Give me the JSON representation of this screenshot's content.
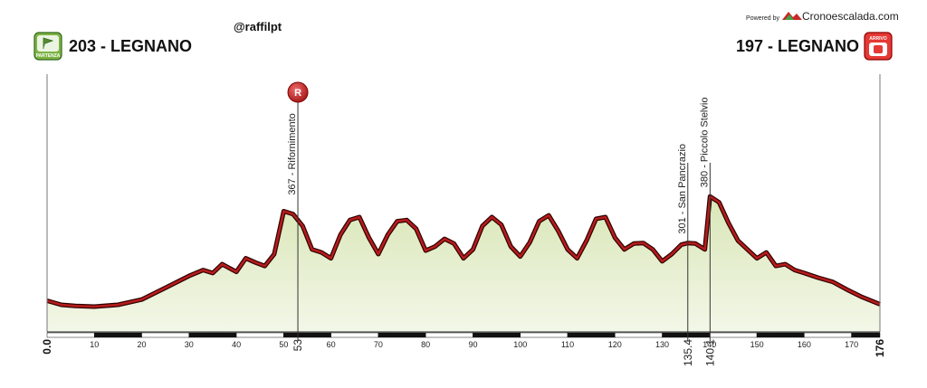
{
  "header": {
    "start": {
      "label": "203 - LEGNANO",
      "badge": "PARTENZA",
      "badge_color": "#7cb342"
    },
    "finish": {
      "label": "197 - LEGNANO",
      "badge": "ARRIVO",
      "badge_color": "#d32f2f"
    },
    "credit": "@raffilpt",
    "powered_by": "Powered by",
    "brand": "Cronoescalada.com"
  },
  "colors": {
    "profile_fill": "#e4edcb",
    "profile_line": "#b71c1c",
    "marker": "#c62828"
  },
  "chart_data": {
    "type": "area",
    "title": "",
    "xlabel": "",
    "ylabel": "",
    "xlim": [
      0,
      176
    ],
    "ylim": [
      150,
      560
    ],
    "x_ticks": [
      10,
      20,
      30,
      40,
      50,
      60,
      70,
      80,
      90,
      100,
      110,
      120,
      130,
      140,
      150,
      160,
      170
    ],
    "km_start": "0.0",
    "km_end": "176",
    "x": [
      0,
      3,
      6,
      10,
      15,
      20,
      25,
      30,
      33,
      35,
      37,
      40,
      42,
      44,
      46,
      48,
      50,
      52,
      54,
      56,
      58,
      60,
      62,
      64,
      66,
      68,
      70,
      72,
      74,
      76,
      78,
      80,
      82,
      84,
      86,
      88,
      90,
      92,
      94,
      96,
      98,
      100,
      102,
      104,
      106,
      108,
      110,
      112,
      114,
      116,
      118,
      120,
      122,
      124,
      126,
      128,
      130,
      132,
      134,
      135.4,
      137,
      139,
      140.1,
      142,
      144,
      146,
      148,
      150,
      152,
      154,
      156,
      158,
      160,
      163,
      166,
      169,
      172,
      176
    ],
    "elevation": [
      203,
      196,
      194,
      193,
      196,
      205,
      225,
      245,
      255,
      250,
      265,
      252,
      275,
      268,
      262,
      282,
      355,
      350,
      330,
      290,
      285,
      275,
      315,
      340,
      345,
      310,
      282,
      315,
      338,
      340,
      325,
      288,
      295,
      308,
      300,
      275,
      290,
      330,
      345,
      332,
      295,
      278,
      302,
      338,
      348,
      322,
      290,
      275,
      305,
      342,
      345,
      310,
      290,
      300,
      301,
      290,
      270,
      282,
      298,
      301,
      300,
      290,
      380,
      370,
      335,
      305,
      290,
      275,
      285,
      262,
      265,
      255,
      250,
      242,
      235,
      222,
      210,
      197
    ],
    "waypoints": [
      {
        "km": 53,
        "km_label": "53",
        "elevation": 367,
        "label": "367 - Rifornimento",
        "symbol": "R"
      },
      {
        "km": 135.4,
        "km_label": "135.4",
        "elevation": 301,
        "label": "301 - San Pancrazio",
        "symbol": ""
      },
      {
        "km": 140.1,
        "km_label": "140.1",
        "elevation": 380,
        "label": "380 - Piccolo Stelvio",
        "symbol": ""
      }
    ]
  }
}
